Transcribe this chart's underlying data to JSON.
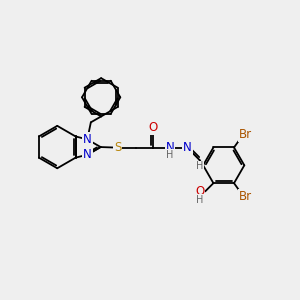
{
  "bg_color": "#efefef",
  "atom_colors": {
    "N": "#0000cc",
    "S": "#b8860b",
    "O": "#cc0000",
    "Br": "#aa5500",
    "H": "#666666",
    "C": "#000000"
  },
  "lw": 1.3,
  "fs": 8.5,
  "fs_small": 7.0
}
